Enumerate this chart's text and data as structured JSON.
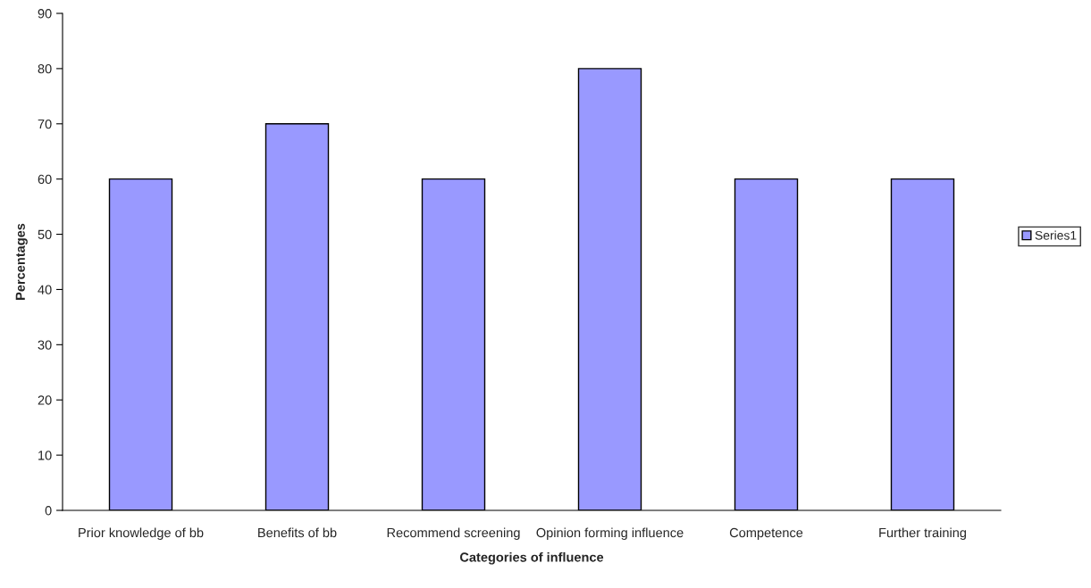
{
  "chart_data": {
    "type": "bar",
    "categories": [
      "Prior knowledge of bb",
      "Benefits of bb",
      "Recommend screening",
      "Opinion forming influence",
      "Competence",
      "Further training"
    ],
    "series": [
      {
        "name": "Series1",
        "color": "#9999ff",
        "values": [
          60,
          70,
          60,
          80,
          60,
          60
        ]
      }
    ],
    "xlabel": "Categories of influence",
    "ylabel": "Percentages",
    "ylim": [
      0,
      90
    ],
    "yticks": [
      0,
      10,
      20,
      30,
      40,
      50,
      60,
      70,
      80,
      90
    ],
    "legend": "right",
    "grid": false
  }
}
